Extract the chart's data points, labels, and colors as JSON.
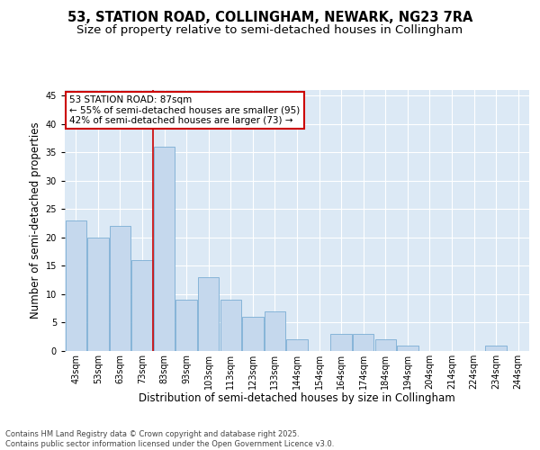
{
  "title_line1": "53, STATION ROAD, COLLINGHAM, NEWARK, NG23 7RA",
  "title_line2": "Size of property relative to semi-detached houses in Collingham",
  "xlabel": "Distribution of semi-detached houses by size in Collingham",
  "ylabel": "Number of semi-detached properties",
  "categories": [
    "43sqm",
    "53sqm",
    "63sqm",
    "73sqm",
    "83sqm",
    "93sqm",
    "103sqm",
    "113sqm",
    "123sqm",
    "133sqm",
    "144sqm",
    "154sqm",
    "164sqm",
    "174sqm",
    "184sqm",
    "194sqm",
    "204sqm",
    "214sqm",
    "224sqm",
    "234sqm",
    "244sqm"
  ],
  "values": [
    23,
    20,
    22,
    16,
    36,
    9,
    13,
    9,
    6,
    7,
    2,
    0,
    3,
    3,
    2,
    1,
    0,
    0,
    0,
    1,
    0
  ],
  "bar_color": "#c5d8ed",
  "bar_edge_color": "#7aadd4",
  "background_color": "#dce9f5",
  "grid_color": "#ffffff",
  "marker_index": 4,
  "marker_color": "#cc0000",
  "annotation_box_color": "#cc0000",
  "annotation_text_line1": "53 STATION ROAD: 87sqm",
  "annotation_text_line2": "← 55% of semi-detached houses are smaller (95)",
  "annotation_text_line3": "42% of semi-detached houses are larger (73) →",
  "ylim": [
    0,
    46
  ],
  "yticks": [
    0,
    5,
    10,
    15,
    20,
    25,
    30,
    35,
    40,
    45
  ],
  "footer_line1": "Contains HM Land Registry data © Crown copyright and database right 2025.",
  "footer_line2": "Contains public sector information licensed under the Open Government Licence v3.0.",
  "title_fontsize": 10.5,
  "subtitle_fontsize": 9.5,
  "axis_label_fontsize": 8.5,
  "tick_fontsize": 7,
  "annotation_fontsize": 7.5,
  "footer_fontsize": 6
}
